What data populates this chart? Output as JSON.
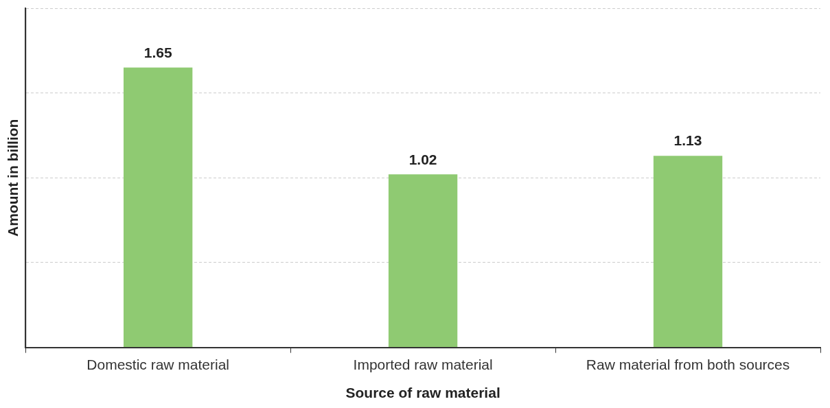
{
  "chart_data": {
    "type": "bar",
    "xlabel": "Source of raw material",
    "ylabel": "Amount in billion",
    "categories": [
      "Domestic raw material",
      "Imported raw material",
      "Raw material from both sources"
    ],
    "values": [
      1.65,
      1.02,
      1.13
    ],
    "color": "#8fca72",
    "ylim": [
      0,
      2
    ],
    "yticks": [
      {
        "value": 0,
        "label": null
      },
      {
        "value": 0.5,
        "label": null
      },
      {
        "value": 1,
        "label": null
      },
      {
        "value": 1.5,
        "label": null
      },
      {
        "value": 2,
        "label": null
      }
    ],
    "grid": "y",
    "tick_labels": "x",
    "data_labels": true
  }
}
